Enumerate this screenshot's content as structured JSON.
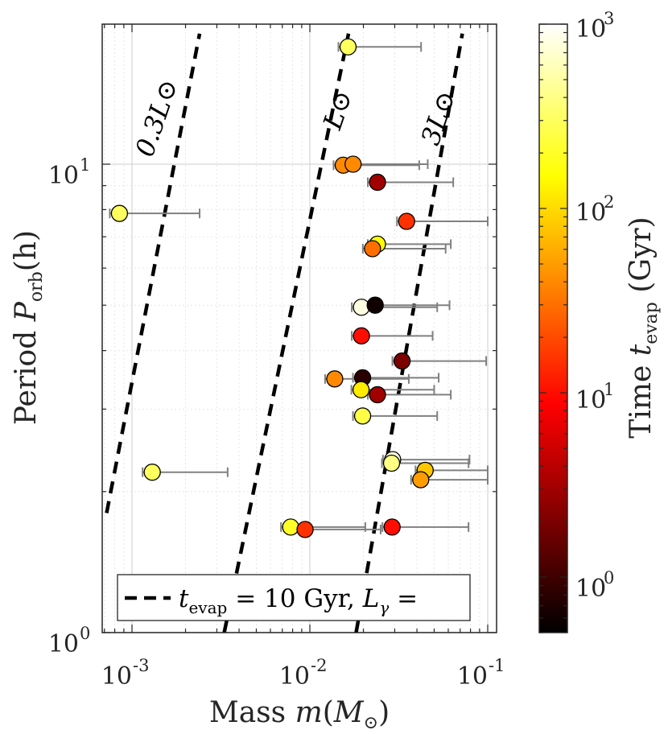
{
  "chart_data": {
    "type": "scatter",
    "xscale": "log",
    "yscale": "log",
    "xlim": [
      0.0007,
      0.1
    ],
    "ylim": [
      1,
      20
    ],
    "xlabel": "Mass m(M⊙)",
    "ylabel": "Period P_orb(h)",
    "x_ticks": [
      "10-3",
      "10-2",
      "10-1"
    ],
    "y_ticks": [
      "100",
      "101"
    ],
    "grid": true,
    "colorbar": {
      "label": "Time t_evap (Gyr)",
      "scale": "log",
      "range": [
        0.5,
        1000
      ],
      "colormap": "hot",
      "ticks": [
        "100",
        "101",
        "102",
        "103"
      ]
    },
    "legend": {
      "text": "t_evap = 10 Gyr, L_γ =",
      "placement": "bottom"
    },
    "lines": [
      {
        "label": "0.3L⊙",
        "luminosity_factor": 0.3,
        "style": "dashed",
        "points": [
          [
            0.00072,
            1.8
          ],
          [
            0.0024,
            19.0
          ]
        ]
      },
      {
        "label": "L⊙",
        "luminosity_factor": 1,
        "style": "dashed",
        "points": [
          [
            0.0033,
            1.0
          ],
          [
            0.0165,
            19.0
          ]
        ]
      },
      {
        "label": "3L⊙",
        "luminosity_factor": 3,
        "style": "dashed",
        "points": [
          [
            0.0182,
            1.0
          ],
          [
            0.072,
            19.0
          ]
        ]
      }
    ],
    "points": [
      {
        "mass": 0.0164,
        "mass_upper": 0.0422,
        "period": 17.8,
        "t_evap": 300
      },
      {
        "mass": 0.00085,
        "mass_upper": 0.0024,
        "period": 7.85,
        "t_evap": 300
      },
      {
        "mass": 0.0154,
        "mass_upper": 0.0412,
        "period": 9.95,
        "t_evap": 40
      },
      {
        "mass": 0.0175,
        "mass_upper": 0.046,
        "period": 10.0,
        "t_evap": 40
      },
      {
        "mass": 0.024,
        "mass_upper": 0.064,
        "period": 9.15,
        "t_evap": 3
      },
      {
        "mass": 0.035,
        "mass_upper": 0.1,
        "period": 7.55,
        "t_evap": 15
      },
      {
        "mass": 0.024,
        "mass_upper": 0.062,
        "period": 6.75,
        "t_evap": 150
      },
      {
        "mass": 0.0225,
        "mass_upper": 0.058,
        "period": 6.6,
        "t_evap": 30
      },
      {
        "mass": 0.0195,
        "mass_upper": 0.052,
        "period": 4.95,
        "t_evap": 800
      },
      {
        "mass": 0.0233,
        "mass_upper": 0.061,
        "period": 5.0,
        "t_evap": 0.6
      },
      {
        "mass": 0.0195,
        "mass_upper": 0.049,
        "period": 4.3,
        "t_evap": 10
      },
      {
        "mass": 0.033,
        "mass_upper": 0.098,
        "period": 3.8,
        "t_evap": 2
      },
      {
        "mass": 0.0138,
        "mass_upper": 0.036,
        "period": 3.48,
        "t_evap": 40
      },
      {
        "mass": 0.0198,
        "mass_upper": 0.053,
        "period": 3.5,
        "t_evap": 0.8
      },
      {
        "mass": 0.0194,
        "mass_upper": 0.05,
        "period": 3.3,
        "t_evap": 120
      },
      {
        "mass": 0.024,
        "mass_upper": 0.062,
        "period": 3.22,
        "t_evap": 3
      },
      {
        "mass": 0.0198,
        "mass_upper": 0.052,
        "period": 2.9,
        "t_evap": 250
      },
      {
        "mass": 0.0292,
        "mass_upper": 0.079,
        "period": 2.34,
        "t_evap": 800
      },
      {
        "mass": 0.0288,
        "mass_upper": 0.078,
        "period": 2.3,
        "t_evap": 400
      },
      {
        "mass": 0.0445,
        "mass_upper": 0.1,
        "period": 2.22,
        "t_evap": 80
      },
      {
        "mass": 0.042,
        "mass_upper": 0.1,
        "period": 2.12,
        "t_evap": 50
      },
      {
        "mass": 0.0013,
        "mass_upper": 0.00345,
        "period": 2.2,
        "t_evap": 300
      },
      {
        "mass": 0.0078,
        "mass_upper": 0.0205,
        "period": 1.68,
        "t_evap": 200
      },
      {
        "mass": 0.0094,
        "mass_upper": 0.025,
        "period": 1.66,
        "t_evap": 15
      },
      {
        "mass": 0.029,
        "mass_upper": 0.078,
        "period": 1.68,
        "t_evap": 10
      }
    ]
  }
}
